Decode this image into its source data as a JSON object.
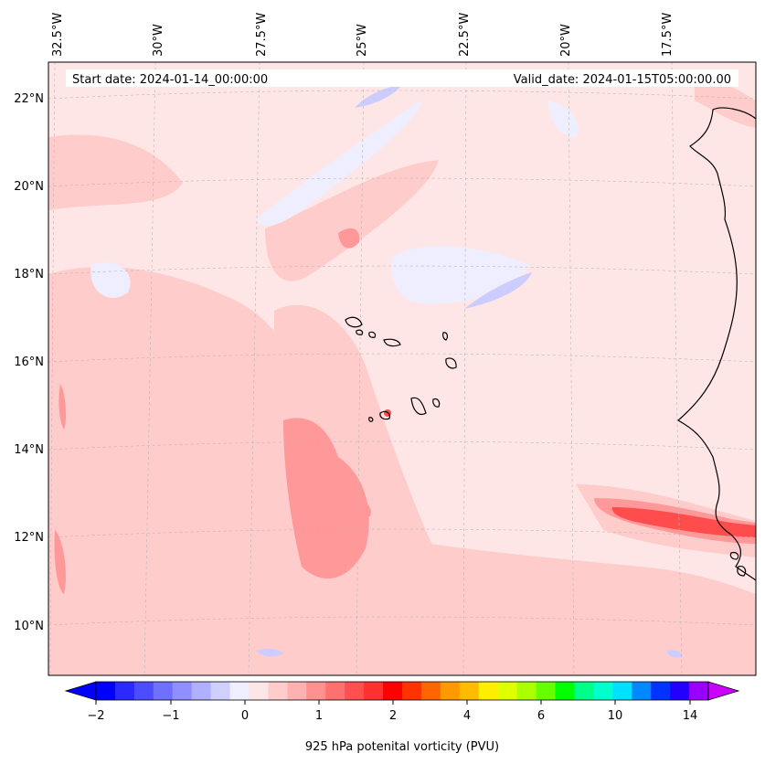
{
  "header": {
    "start_date": "Start date: 2024-01-14_00:00:00",
    "valid_date": "Valid_date: 2024-01-15T05:00:00.00"
  },
  "map": {
    "lon_labels": [
      "32.5°W",
      "30°W",
      "27.5°W",
      "25°W",
      "22.5°W",
      "20°W",
      "17.5°W"
    ],
    "lat_labels": [
      "22°N",
      "20°N",
      "18°N",
      "16°N",
      "14°N",
      "12°N",
      "10°N"
    ],
    "colors": {
      "background": "#ffe6e6",
      "light_red": "#ffcccc",
      "medium_red": "#ff9999",
      "strong_red": "#ff4d4d",
      "light_blue": "#eeeeff",
      "medium_blue": "#ccccff",
      "coastline": "#000000"
    }
  },
  "colorbar": {
    "label": "925 hPa potenital vorticity (PVU)",
    "tick_labels": [
      "−2",
      "−1",
      "0",
      "1",
      "2",
      "4",
      "6",
      "10",
      "14"
    ],
    "colors": [
      "#0000ff",
      "#2a2aff",
      "#4d4dff",
      "#7070ff",
      "#8f8fff",
      "#b0b0ff",
      "#d0d0ff",
      "#eeeeff",
      "#ffe6e6",
      "#ffcccc",
      "#ffb0b0",
      "#ff9090",
      "#ff7070",
      "#ff5050",
      "#ff3030",
      "#ff0000",
      "#ff3300",
      "#ff6600",
      "#ff9900",
      "#ffbb00",
      "#ffee00",
      "#ddff00",
      "#aaff00",
      "#66ff00",
      "#00ff00",
      "#00ff88",
      "#00ffcc",
      "#00e0ff",
      "#0088ff",
      "#0033ff",
      "#2200ff",
      "#9900ff"
    ],
    "min_color": "#0000ff",
    "max_color": "#cc00ff"
  }
}
